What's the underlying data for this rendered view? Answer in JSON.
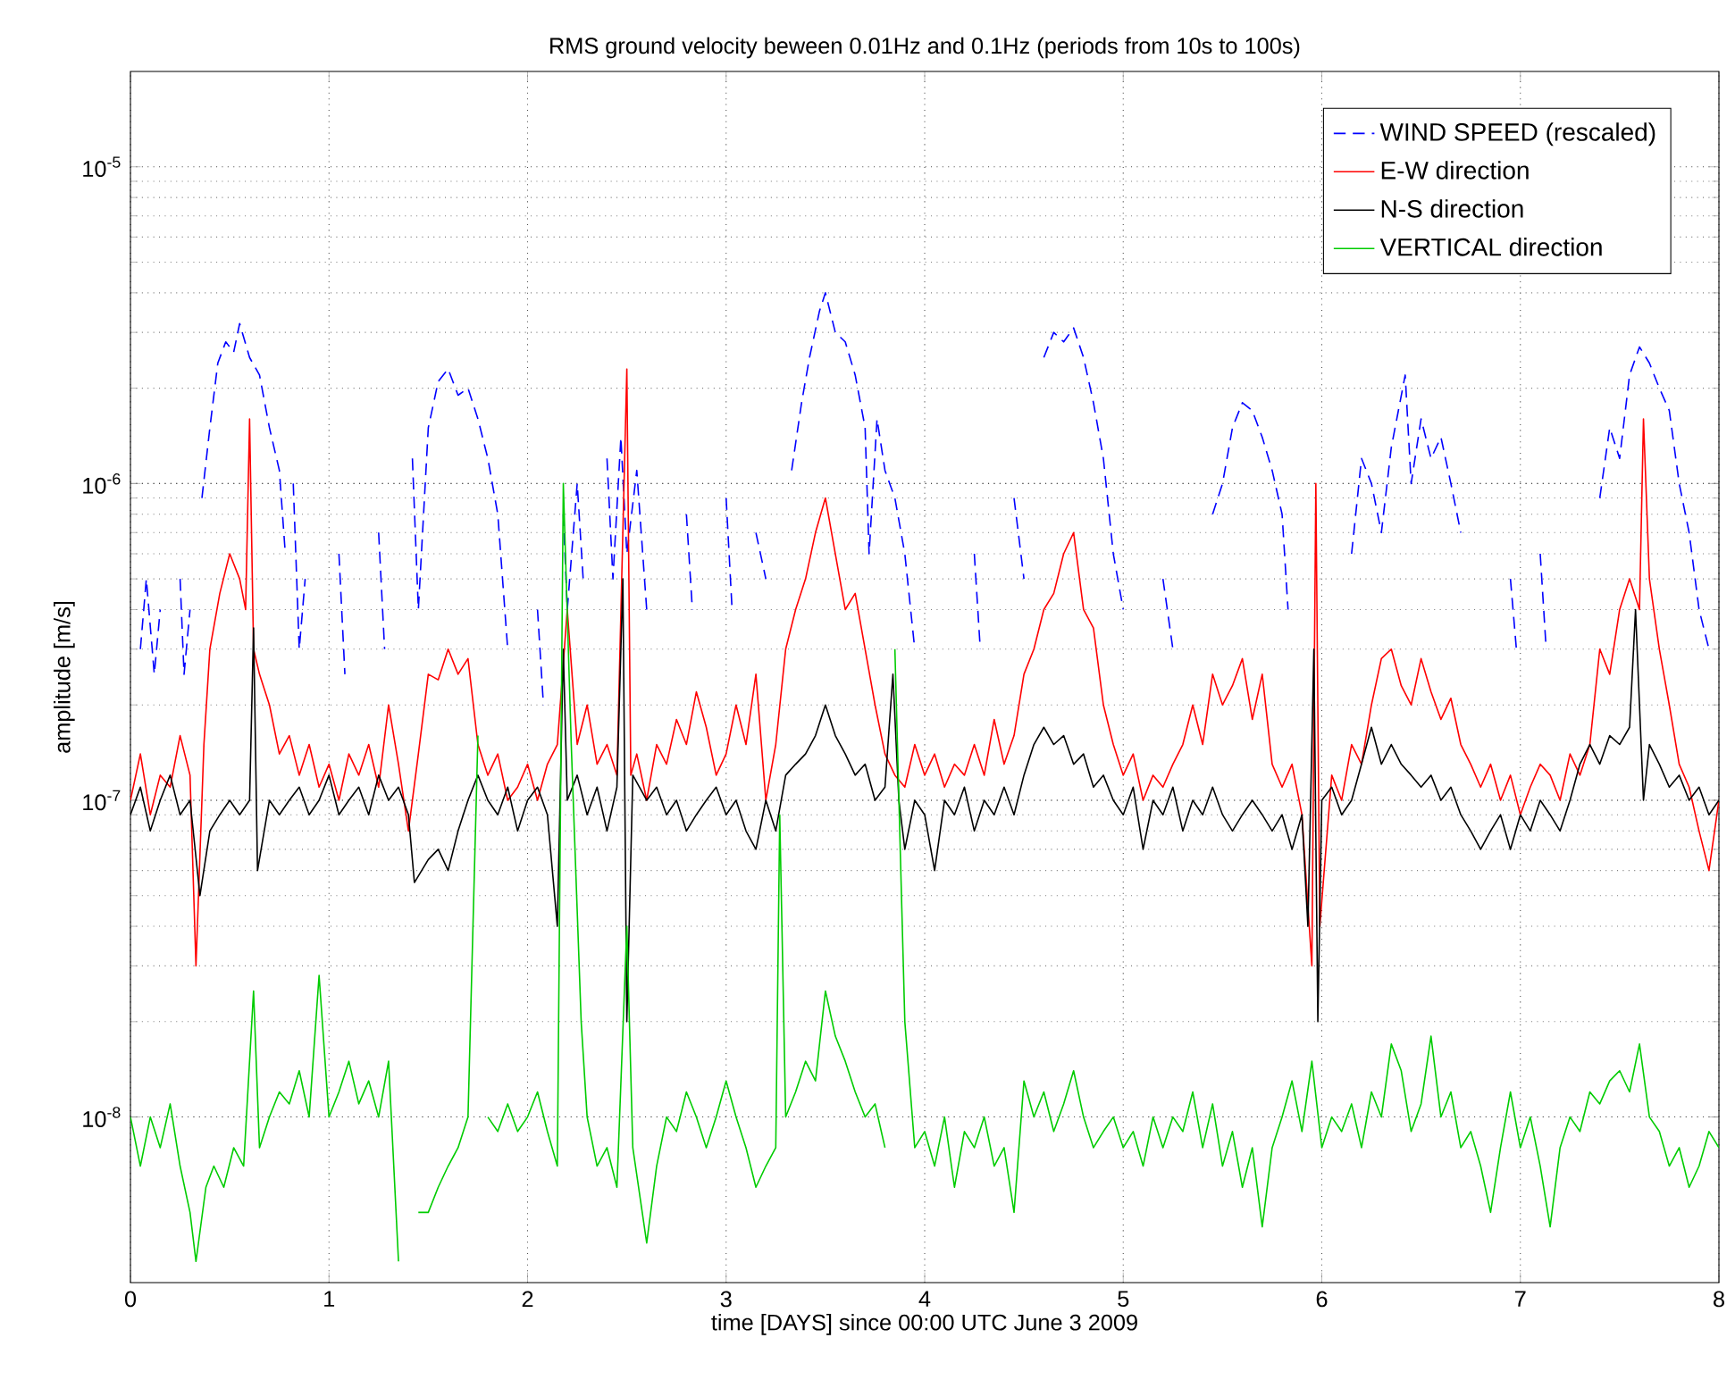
{
  "chart_data": {
    "type": "line",
    "title": "RMS ground velocity beween 0.01Hz and 0.1Hz (periods from 10s to 100s)",
    "xlabel": "time [DAYS] since 00:00 UTC June 3 2009",
    "ylabel": "amplitude [m/s]",
    "xlim": [
      0,
      8
    ],
    "xticks": [
      0,
      1,
      2,
      3,
      4,
      5,
      6,
      7,
      8
    ],
    "ylim": [
      3e-09,
      2e-05
    ],
    "yticks": [
      {
        "value": 1e-08,
        "label": "10$^{-8}$"
      },
      {
        "value": 1e-07,
        "label": "10$^{-7}$"
      },
      {
        "value": 1e-06,
        "label": "10$^{-6}$"
      },
      {
        "value": 1e-05,
        "label": "10$^{-5}$"
      }
    ],
    "log": "y",
    "grid": true,
    "legend": "top right",
    "marker": "none",
    "series": [
      {
        "name": "WIND SPEED (rescaled)",
        "color": "#0000ff",
        "line_style": "dashed",
        "x": [
          0.05,
          0.08,
          0.12,
          0.15,
          0.2,
          0.25,
          0.27,
          0.3,
          0.33,
          0.36,
          0.4,
          0.44,
          0.48,
          0.52,
          0.55,
          0.6,
          0.65,
          0.7,
          0.75,
          0.78,
          0.8,
          0.82,
          0.85,
          0.88,
          0.9,
          1.05,
          1.08,
          1.1,
          1.25,
          1.28,
          1.3,
          1.42,
          1.45,
          1.5,
          1.55,
          1.6,
          1.65,
          1.7,
          1.75,
          1.8,
          1.85,
          1.9,
          1.95,
          2.05,
          2.08,
          2.1,
          2.18,
          2.2,
          2.25,
          2.28,
          2.3,
          2.4,
          2.43,
          2.47,
          2.5,
          2.55,
          2.6,
          2.63,
          2.8,
          2.83,
          2.86,
          3.0,
          3.03,
          3.06,
          3.15,
          3.2,
          3.25,
          3.33,
          3.38,
          3.42,
          3.47,
          3.5,
          3.55,
          3.6,
          3.65,
          3.7,
          3.72,
          3.76,
          3.8,
          3.85,
          3.9,
          3.95,
          3.98,
          4.25,
          4.28,
          4.3,
          4.45,
          4.5,
          4.55,
          4.6,
          4.65,
          4.7,
          4.75,
          4.8,
          4.85,
          4.9,
          4.95,
          5.0,
          5.02,
          5.2,
          5.25,
          5.28,
          5.45,
          5.5,
          5.55,
          5.6,
          5.65,
          5.7,
          5.75,
          5.8,
          5.83,
          5.86,
          6.15,
          6.2,
          6.25,
          6.3,
          6.35,
          6.42,
          6.45,
          6.5,
          6.55,
          6.6,
          6.65,
          6.7,
          6.72,
          6.95,
          6.98,
          7.0,
          7.1,
          7.13,
          7.15,
          7.4,
          7.45,
          7.5,
          7.55,
          7.6,
          7.65,
          7.7,
          7.75,
          7.8,
          7.85,
          7.9,
          7.95
        ],
        "values": [
          3e-07,
          5e-07,
          2.5e-07,
          4e-07,
          null,
          5e-07,
          2.5e-07,
          4e-07,
          null,
          9e-07,
          1.5e-06,
          2.4e-06,
          2.8e-06,
          2.6e-06,
          3.2e-06,
          2.5e-06,
          2.2e-06,
          1.5e-06,
          1.1e-06,
          6e-07,
          null,
          1e-06,
          3e-07,
          5e-07,
          null,
          6e-07,
          2.5e-07,
          null,
          7e-07,
          3e-07,
          null,
          1.2e-06,
          4e-07,
          1.5e-06,
          2.1e-06,
          2.3e-06,
          1.9e-06,
          2e-06,
          1.6e-06,
          1.2e-06,
          8e-07,
          3e-07,
          null,
          4e-07,
          2e-07,
          null,
          8e-07,
          4e-07,
          1e-06,
          5e-07,
          null,
          1.2e-06,
          5e-07,
          1.4e-06,
          6e-07,
          1.1e-06,
          4e-07,
          null,
          8e-07,
          4e-07,
          null,
          9e-07,
          4e-07,
          null,
          7e-07,
          5e-07,
          null,
          1.1e-06,
          1.8e-06,
          2.5e-06,
          3.5e-06,
          4e-06,
          3e-06,
          2.8e-06,
          2.2e-06,
          1.5e-06,
          6e-07,
          1.6e-06,
          1.1e-06,
          9e-07,
          6e-07,
          3e-07,
          null,
          6e-07,
          3e-07,
          null,
          9e-07,
          5e-07,
          null,
          2.5e-06,
          3e-06,
          2.8e-06,
          3.1e-06,
          2.5e-06,
          1.8e-06,
          1.2e-06,
          6e-07,
          4e-07,
          null,
          5e-07,
          3e-07,
          null,
          8e-07,
          1e-06,
          1.5e-06,
          1.8e-06,
          1.7e-06,
          1.4e-06,
          1.1e-06,
          8e-07,
          4e-07,
          null,
          6e-07,
          1.2e-06,
          1e-06,
          7e-07,
          1.3e-06,
          2.2e-06,
          1e-06,
          1.6e-06,
          1.2e-06,
          1.4e-06,
          1e-06,
          7e-07,
          null,
          5e-07,
          3e-07,
          null,
          6e-07,
          3e-07,
          null,
          9e-07,
          1.5e-06,
          1.2e-06,
          2.2e-06,
          2.7e-06,
          2.4e-06,
          2e-06,
          1.7e-06,
          1e-06,
          7e-07,
          4e-07,
          3e-07
        ]
      },
      {
        "name": "E-W direction",
        "color": "#ff0000",
        "line_style": "solid",
        "x": [
          0,
          0.05,
          0.1,
          0.15,
          0.2,
          0.25,
          0.3,
          0.33,
          0.37,
          0.4,
          0.45,
          0.5,
          0.55,
          0.58,
          0.6,
          0.62,
          0.65,
          0.7,
          0.75,
          0.8,
          0.85,
          0.9,
          0.95,
          1.0,
          1.05,
          1.1,
          1.15,
          1.2,
          1.25,
          1.3,
          1.35,
          1.4,
          1.45,
          1.5,
          1.55,
          1.6,
          1.65,
          1.7,
          1.75,
          1.8,
          1.85,
          1.9,
          1.95,
          2.0,
          2.05,
          2.1,
          2.15,
          2.2,
          2.25,
          2.3,
          2.35,
          2.4,
          2.45,
          2.5,
          2.52,
          2.55,
          2.6,
          2.65,
          2.7,
          2.75,
          2.8,
          2.85,
          2.9,
          2.95,
          3.0,
          3.05,
          3.1,
          3.15,
          3.2,
          3.25,
          3.3,
          3.35,
          3.4,
          3.45,
          3.5,
          3.55,
          3.6,
          3.65,
          3.7,
          3.75,
          3.8,
          3.85,
          3.9,
          3.95,
          4.0,
          4.05,
          4.1,
          4.15,
          4.2,
          4.25,
          4.3,
          4.35,
          4.4,
          4.45,
          4.5,
          4.55,
          4.6,
          4.65,
          4.7,
          4.75,
          4.8,
          4.85,
          4.9,
          4.95,
          5.0,
          5.05,
          5.1,
          5.15,
          5.2,
          5.25,
          5.3,
          5.35,
          5.4,
          5.45,
          5.5,
          5.55,
          5.6,
          5.65,
          5.7,
          5.75,
          5.8,
          5.85,
          5.9,
          5.95,
          5.97,
          5.99,
          6.05,
          6.1,
          6.15,
          6.2,
          6.25,
          6.3,
          6.35,
          6.4,
          6.45,
          6.5,
          6.55,
          6.6,
          6.65,
          6.7,
          6.75,
          6.8,
          6.85,
          6.9,
          6.95,
          7.0,
          7.05,
          7.1,
          7.15,
          7.2,
          7.25,
          7.3,
          7.35,
          7.4,
          7.45,
          7.5,
          7.55,
          7.6,
          7.62,
          7.65,
          7.7,
          7.75,
          7.8,
          7.85,
          7.9,
          7.95,
          8.0
        ],
        "values": [
          1e-07,
          1.4e-07,
          9e-08,
          1.2e-07,
          1.1e-07,
          1.6e-07,
          1.2e-07,
          3e-08,
          1.5e-07,
          3e-07,
          4.5e-07,
          6e-07,
          5e-07,
          4e-07,
          1.6e-06,
          3e-07,
          2.5e-07,
          2e-07,
          1.4e-07,
          1.6e-07,
          1.2e-07,
          1.5e-07,
          1.1e-07,
          1.3e-07,
          1e-07,
          1.4e-07,
          1.2e-07,
          1.5e-07,
          1.1e-07,
          2e-07,
          1.3e-07,
          8e-08,
          1.4e-07,
          2.5e-07,
          2.4e-07,
          3e-07,
          2.5e-07,
          2.8e-07,
          1.5e-07,
          1.2e-07,
          1.4e-07,
          1e-07,
          1.1e-07,
          1.3e-07,
          1e-07,
          1.3e-07,
          1.5e-07,
          4e-07,
          1.5e-07,
          2e-07,
          1.3e-07,
          1.5e-07,
          1.2e-07,
          2.3e-06,
          1.2e-07,
          1.4e-07,
          1e-07,
          1.5e-07,
          1.3e-07,
          1.8e-07,
          1.5e-07,
          2.2e-07,
          1.7e-07,
          1.2e-07,
          1.4e-07,
          2e-07,
          1.5e-07,
          2.5e-07,
          1e-07,
          1.5e-07,
          3e-07,
          4e-07,
          5e-07,
          7e-07,
          9e-07,
          6e-07,
          4e-07,
          4.5e-07,
          3e-07,
          2e-07,
          1.4e-07,
          1.2e-07,
          1.1e-07,
          1.5e-07,
          1.2e-07,
          1.4e-07,
          1.1e-07,
          1.3e-07,
          1.2e-07,
          1.5e-07,
          1.2e-07,
          1.8e-07,
          1.3e-07,
          1.6e-07,
          2.5e-07,
          3e-07,
          4e-07,
          4.5e-07,
          6e-07,
          7e-07,
          4e-07,
          3.5e-07,
          2e-07,
          1.5e-07,
          1.2e-07,
          1.4e-07,
          1e-07,
          1.2e-07,
          1.1e-07,
          1.3e-07,
          1.5e-07,
          2e-07,
          1.5e-07,
          2.5e-07,
          2e-07,
          2.3e-07,
          2.8e-07,
          1.8e-07,
          2.5e-07,
          1.3e-07,
          1.1e-07,
          1.3e-07,
          9e-08,
          3e-08,
          1e-06,
          4e-08,
          1.2e-07,
          1e-07,
          1.5e-07,
          1.3e-07,
          2e-07,
          2.8e-07,
          3e-07,
          2.3e-07,
          2e-07,
          2.8e-07,
          2.2e-07,
          1.8e-07,
          2.1e-07,
          1.5e-07,
          1.3e-07,
          1.1e-07,
          1.3e-07,
          1e-07,
          1.2e-07,
          9e-08,
          1.1e-07,
          1.3e-07,
          1.2e-07,
          1e-07,
          1.4e-07,
          1.2e-07,
          1.5e-07,
          3e-07,
          2.5e-07,
          4e-07,
          5e-07,
          4e-07,
          1.6e-06,
          5e-07,
          3e-07,
          2e-07,
          1.3e-07,
          1.1e-07,
          8e-08,
          6e-08,
          1e-07
        ]
      },
      {
        "name": "N-S direction",
        "color": "#000000",
        "line_style": "solid",
        "x": [
          0,
          0.05,
          0.1,
          0.15,
          0.2,
          0.25,
          0.3,
          0.35,
          0.4,
          0.45,
          0.5,
          0.55,
          0.6,
          0.62,
          0.64,
          0.7,
          0.75,
          0.8,
          0.85,
          0.9,
          0.95,
          1.0,
          1.05,
          1.1,
          1.15,
          1.2,
          1.25,
          1.3,
          1.35,
          1.4,
          1.43,
          1.5,
          1.55,
          1.6,
          1.65,
          1.7,
          1.75,
          1.8,
          1.85,
          1.9,
          1.95,
          2.0,
          2.05,
          2.1,
          2.15,
          2.18,
          2.2,
          2.25,
          2.3,
          2.35,
          2.4,
          2.45,
          2.48,
          2.5,
          2.53,
          2.6,
          2.65,
          2.7,
          2.75,
          2.8,
          2.85,
          2.9,
          2.95,
          3.0,
          3.05,
          3.1,
          3.15,
          3.2,
          3.25,
          3.3,
          3.35,
          3.4,
          3.45,
          3.5,
          3.55,
          3.6,
          3.65,
          3.7,
          3.75,
          3.8,
          3.84,
          3.87,
          3.9,
          3.95,
          4.0,
          4.05,
          4.1,
          4.15,
          4.2,
          4.25,
          4.3,
          4.35,
          4.4,
          4.45,
          4.5,
          4.55,
          4.6,
          4.65,
          4.7,
          4.75,
          4.8,
          4.85,
          4.9,
          4.95,
          5.0,
          5.05,
          5.1,
          5.15,
          5.2,
          5.25,
          5.3,
          5.35,
          5.4,
          5.45,
          5.5,
          5.55,
          5.6,
          5.65,
          5.7,
          5.75,
          5.8,
          5.85,
          5.9,
          5.93,
          5.96,
          5.98,
          6.0,
          6.05,
          6.1,
          6.15,
          6.2,
          6.25,
          6.3,
          6.35,
          6.4,
          6.45,
          6.5,
          6.55,
          6.6,
          6.65,
          6.7,
          6.75,
          6.8,
          6.85,
          6.9,
          6.95,
          7.0,
          7.05,
          7.1,
          7.15,
          7.2,
          7.25,
          7.3,
          7.35,
          7.4,
          7.45,
          7.5,
          7.55,
          7.58,
          7.6,
          7.62,
          7.65,
          7.7,
          7.75,
          7.8,
          7.85,
          7.9,
          7.95,
          8.0
        ],
        "values": [
          9e-08,
          1.1e-07,
          8e-08,
          1e-07,
          1.2e-07,
          9e-08,
          1e-07,
          5e-08,
          8e-08,
          9e-08,
          1e-07,
          9e-08,
          1e-07,
          3.5e-07,
          6e-08,
          1e-07,
          9e-08,
          1e-07,
          1.1e-07,
          9e-08,
          1e-07,
          1.2e-07,
          9e-08,
          1e-07,
          1.1e-07,
          9e-08,
          1.2e-07,
          1e-07,
          1.1e-07,
          9e-08,
          5.5e-08,
          6.5e-08,
          7e-08,
          6e-08,
          8e-08,
          1e-07,
          1.2e-07,
          1e-07,
          9e-08,
          1.1e-07,
          8e-08,
          1e-07,
          1.1e-07,
          9e-08,
          4e-08,
          3e-07,
          1e-07,
          1.2e-07,
          9e-08,
          1.1e-07,
          8e-08,
          1.1e-07,
          5e-07,
          2e-08,
          1.2e-07,
          1e-07,
          1.1e-07,
          9e-08,
          1e-07,
          8e-08,
          9e-08,
          1e-07,
          1.1e-07,
          9e-08,
          1e-07,
          8e-08,
          7e-08,
          1e-07,
          8e-08,
          1.2e-07,
          1.3e-07,
          1.4e-07,
          1.6e-07,
          2e-07,
          1.6e-07,
          1.4e-07,
          1.2e-07,
          1.3e-07,
          1e-07,
          1.1e-07,
          2.5e-07,
          1e-07,
          7e-08,
          1e-07,
          9e-08,
          6e-08,
          1e-07,
          9e-08,
          1.1e-07,
          8e-08,
          1e-07,
          9e-08,
          1.1e-07,
          9e-08,
          1.2e-07,
          1.5e-07,
          1.7e-07,
          1.5e-07,
          1.6e-07,
          1.3e-07,
          1.4e-07,
          1.1e-07,
          1.2e-07,
          1e-07,
          9e-08,
          1.1e-07,
          7e-08,
          1e-07,
          9e-08,
          1.1e-07,
          8e-08,
          1e-07,
          9e-08,
          1.1e-07,
          9e-08,
          8e-08,
          9e-08,
          1e-07,
          9e-08,
          8e-08,
          9e-08,
          7e-08,
          9e-08,
          4e-08,
          3e-07,
          2e-08,
          1e-07,
          1.1e-07,
          9e-08,
          1e-07,
          1.3e-07,
          1.7e-07,
          1.3e-07,
          1.5e-07,
          1.3e-07,
          1.2e-07,
          1.1e-07,
          1.2e-07,
          1e-07,
          1.1e-07,
          9e-08,
          8e-08,
          7e-08,
          8e-08,
          9e-08,
          7e-08,
          9e-08,
          8e-08,
          1e-07,
          9e-08,
          8e-08,
          1e-07,
          1.3e-07,
          1.5e-07,
          1.3e-07,
          1.6e-07,
          1.5e-07,
          1.7e-07,
          4e-07,
          2e-07,
          1e-07,
          1.5e-07,
          1.3e-07,
          1.1e-07,
          1.2e-07,
          1e-07,
          1.1e-07,
          9e-08,
          1e-07
        ]
      },
      {
        "name": "VERTICAL direction",
        "color": "#00cc00",
        "line_style": "solid",
        "x": [
          0,
          0.05,
          0.1,
          0.15,
          0.2,
          0.25,
          0.3,
          0.33,
          0.38,
          0.42,
          0.47,
          0.52,
          0.57,
          0.62,
          0.65,
          0.7,
          0.75,
          0.8,
          0.85,
          0.9,
          0.95,
          1.0,
          1.05,
          1.1,
          1.15,
          1.2,
          1.25,
          1.3,
          1.35,
          1.4,
          1.45,
          1.5,
          1.55,
          1.6,
          1.65,
          1.7,
          1.75,
          1.77,
          1.8,
          1.85,
          1.9,
          1.95,
          2.0,
          2.05,
          2.1,
          2.15,
          2.18,
          2.22,
          2.27,
          2.3,
          2.35,
          2.4,
          2.45,
          2.5,
          2.53,
          2.6,
          2.65,
          2.7,
          2.75,
          2.8,
          2.85,
          2.9,
          2.95,
          3.0,
          3.05,
          3.1,
          3.15,
          3.2,
          3.25,
          3.27,
          3.3,
          3.35,
          3.4,
          3.45,
          3.5,
          3.55,
          3.6,
          3.65,
          3.7,
          3.75,
          3.8,
          3.82,
          3.85,
          3.9,
          3.95,
          4.0,
          4.05,
          4.1,
          4.15,
          4.2,
          4.25,
          4.3,
          4.35,
          4.4,
          4.45,
          4.5,
          4.55,
          4.6,
          4.65,
          4.7,
          4.75,
          4.8,
          4.85,
          4.9,
          4.95,
          5.0,
          5.05,
          5.1,
          5.15,
          5.2,
          5.25,
          5.3,
          5.35,
          5.4,
          5.45,
          5.5,
          5.55,
          5.6,
          5.65,
          5.7,
          5.75,
          5.8,
          5.85,
          5.9,
          5.95,
          6.0,
          6.05,
          6.1,
          6.15,
          6.2,
          6.25,
          6.3,
          6.35,
          6.4,
          6.45,
          6.5,
          6.55,
          6.6,
          6.65,
          6.7,
          6.75,
          6.8,
          6.85,
          6.9,
          6.95,
          7.0,
          7.05,
          7.1,
          7.15,
          7.2,
          7.25,
          7.3,
          7.35,
          7.4,
          7.45,
          7.5,
          7.55,
          7.6,
          7.65,
          7.7,
          7.75,
          7.8,
          7.85,
          7.9,
          7.95,
          8.0
        ],
        "values": [
          1e-08,
          7e-09,
          1e-08,
          8e-09,
          1.1e-08,
          7e-09,
          5e-09,
          3.5e-09,
          6e-09,
          7e-09,
          6e-09,
          8e-09,
          7e-09,
          2.5e-08,
          8e-09,
          1e-08,
          1.2e-08,
          1.1e-08,
          1.4e-08,
          1e-08,
          2.8e-08,
          1e-08,
          1.2e-08,
          1.5e-08,
          1.1e-08,
          1.3e-08,
          1e-08,
          1.5e-08,
          3.5e-09,
          null,
          5e-09,
          5e-09,
          6e-09,
          7e-09,
          8e-09,
          1e-08,
          1.6e-07,
          null,
          1e-08,
          9e-09,
          1.1e-08,
          9e-09,
          1e-08,
          1.2e-08,
          9e-09,
          7e-09,
          1e-06,
          1.5e-07,
          2e-08,
          1e-08,
          7e-09,
          8e-09,
          6e-09,
          4e-08,
          8e-09,
          4e-09,
          7e-09,
          1e-08,
          9e-09,
          1.2e-08,
          1e-08,
          8e-09,
          1e-08,
          1.3e-08,
          1e-08,
          8e-09,
          6e-09,
          7e-09,
          8e-09,
          9e-08,
          1e-08,
          1.2e-08,
          1.5e-08,
          1.3e-08,
          2.5e-08,
          1.8e-08,
          1.5e-08,
          1.2e-08,
          1e-08,
          1.1e-08,
          8e-09,
          null,
          3e-07,
          2e-08,
          8e-09,
          9e-09,
          7e-09,
          1e-08,
          6e-09,
          9e-09,
          8e-09,
          1e-08,
          7e-09,
          8e-09,
          5e-09,
          1.3e-08,
          1e-08,
          1.2e-08,
          9e-09,
          1.1e-08,
          1.4e-08,
          1e-08,
          8e-09,
          9e-09,
          1e-08,
          8e-09,
          9e-09,
          7e-09,
          1e-08,
          8e-09,
          1e-08,
          9e-09,
          1.2e-08,
          8e-09,
          1.1e-08,
          7e-09,
          9e-09,
          6e-09,
          8e-09,
          4.5e-09,
          8e-09,
          1e-08,
          1.3e-08,
          9e-09,
          1.5e-08,
          8e-09,
          1e-08,
          9e-09,
          1.1e-08,
          8e-09,
          1.2e-08,
          1e-08,
          1.7e-08,
          1.4e-08,
          9e-09,
          1.1e-08,
          1.8e-08,
          1e-08,
          1.2e-08,
          8e-09,
          9e-09,
          7e-09,
          5e-09,
          8e-09,
          1.2e-08,
          8e-09,
          1e-08,
          7e-09,
          4.5e-09,
          8e-09,
          1e-08,
          9e-09,
          1.2e-08,
          1.1e-08,
          1.3e-08,
          1.4e-08,
          1.2e-08,
          1.7e-08,
          1e-08,
          9e-09,
          7e-09,
          8e-09,
          6e-09,
          7e-09,
          9e-09,
          8e-09
        ]
      }
    ]
  }
}
